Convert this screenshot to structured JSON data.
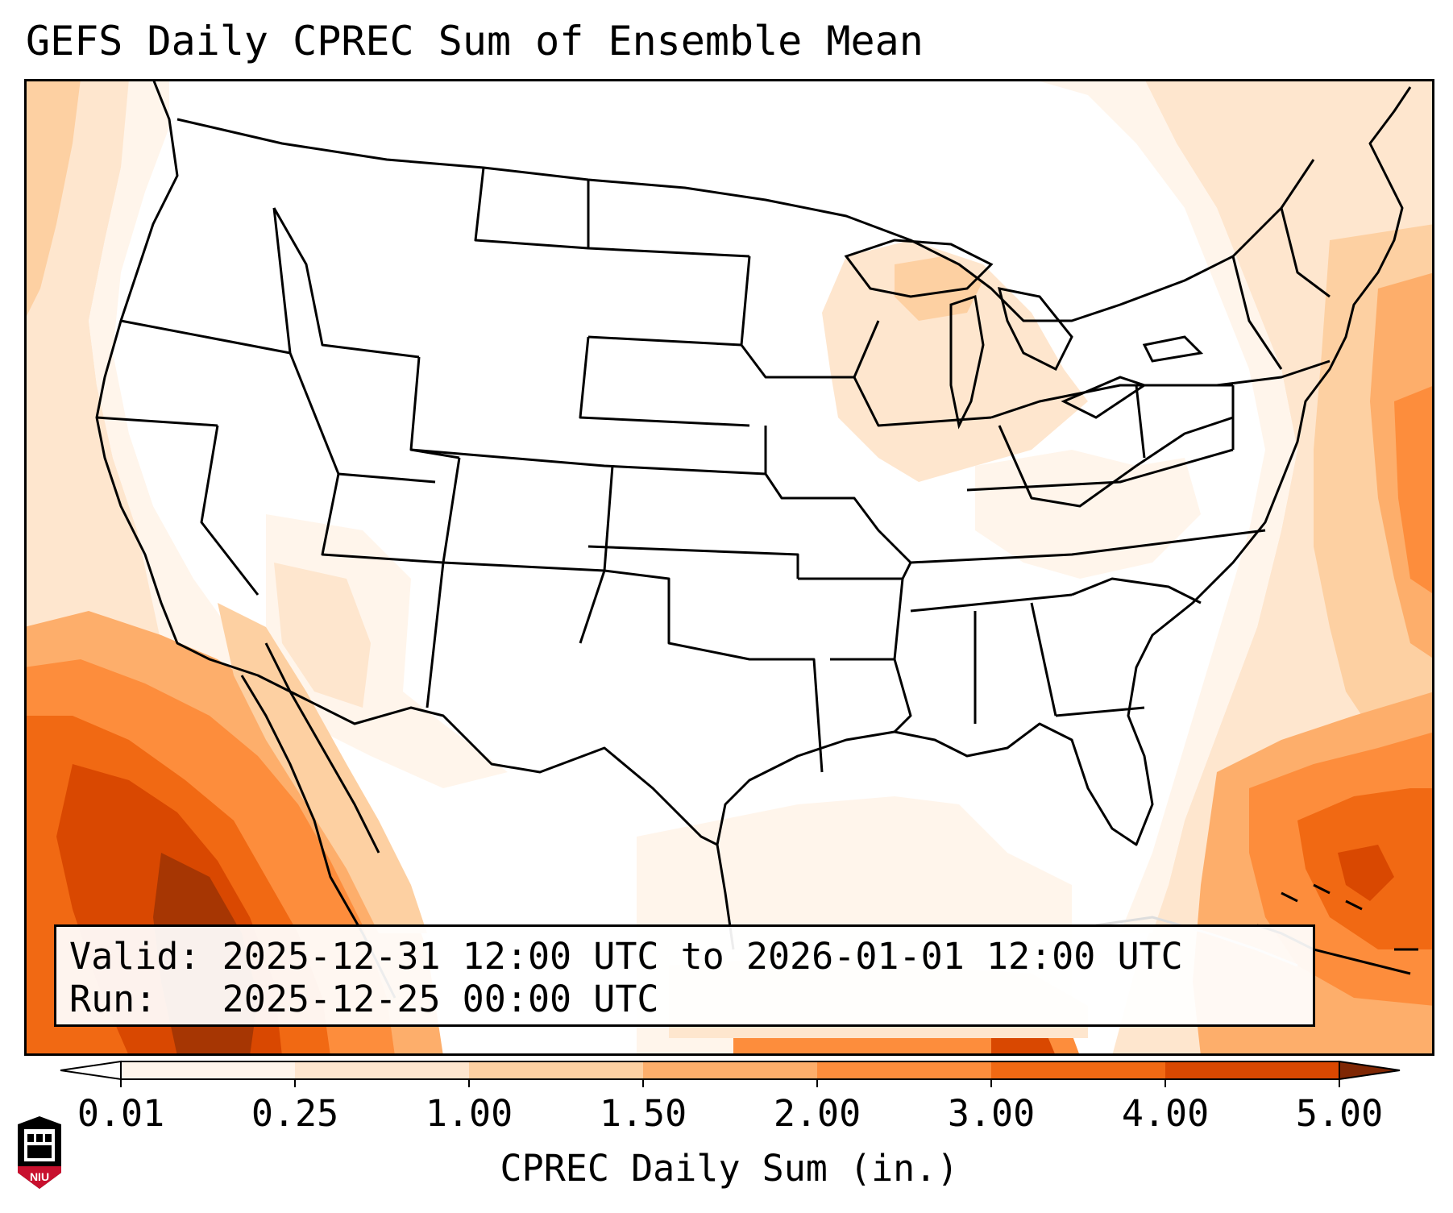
{
  "title": "GEFS Daily CPREC Sum of Ensemble Mean",
  "info": {
    "valid_label": "Valid:",
    "valid_value": "2025-12-31 12:00 UTC to 2026-01-01 12:00 UTC",
    "run_label": "Run:",
    "run_value": "2025-12-25 00:00 UTC"
  },
  "colorbar": {
    "label": "CPREC Daily Sum (in.)",
    "ticks": [
      "0.01",
      "0.25",
      "1.00",
      "1.50",
      "2.00",
      "3.00",
      "4.00",
      "5.00"
    ],
    "colors": [
      "#fff5eb",
      "#fee6ce",
      "#fdd0a2",
      "#fdae6b",
      "#fd8d3c",
      "#f16913",
      "#d94801",
      "#a63603"
    ],
    "under_color": "#ffffff",
    "over_color": "#7f2704"
  },
  "logo": {
    "text": "NIU"
  },
  "map_regions": [
    {
      "name": "pacific-sw-high",
      "level": 6
    },
    {
      "name": "baja-mexico-high",
      "level": 5
    },
    {
      "name": "atlantic-se-high",
      "level": 5
    },
    {
      "name": "atlantic-ne-medium",
      "level": 3
    },
    {
      "name": "great-lakes-light",
      "level": 1
    },
    {
      "name": "pacific-nw-light",
      "level": 1
    }
  ]
}
